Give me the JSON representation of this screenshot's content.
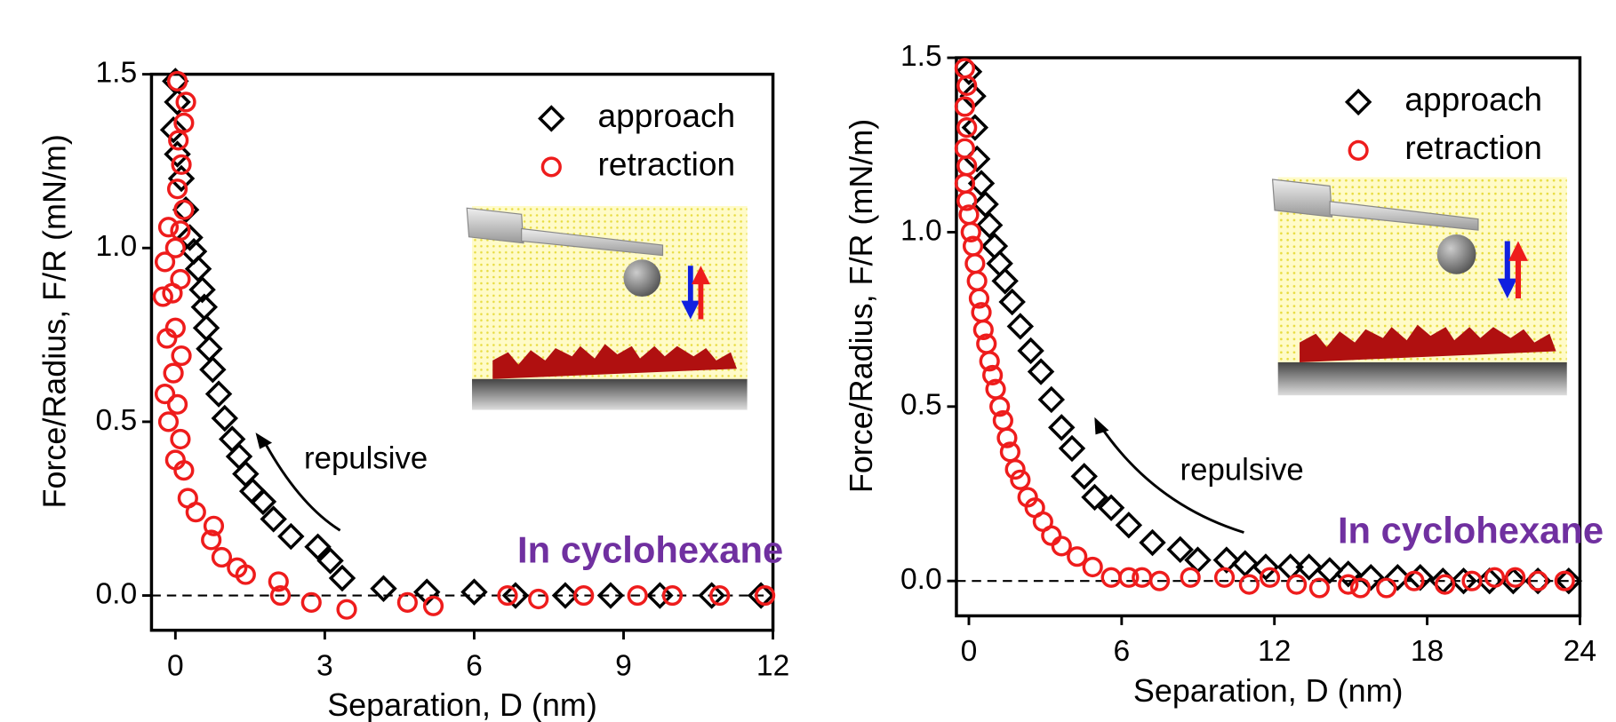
{
  "chart_data": [
    {
      "type": "scatter",
      "xlabel": "Separation, D (nm)",
      "ylabel": "Force/Radius, F/R (mN/m)",
      "xlim": [
        -0.48,
        12
      ],
      "ylim": [
        -0.1,
        1.5
      ],
      "xticks": [
        0,
        3,
        6,
        9,
        12
      ],
      "yticks": [
        {
          "value": 0,
          "label": "0.0"
        },
        0.5,
        {
          "value": 1,
          "label": "1.0"
        },
        1.5
      ],
      "hline": 0,
      "legend": "upper right",
      "annotations": [
        "repulsive",
        "In cyclohexane"
      ],
      "series": [
        {
          "name": "approach",
          "marker": "diamond",
          "color": "#000000",
          "x": [
            0.0,
            0.04,
            -0.04,
            0.04,
            0.12,
            0.21,
            0.29,
            0.37,
            0.46,
            0.54,
            0.58,
            0.62,
            0.68,
            0.75,
            0.87,
            0.99,
            1.14,
            1.28,
            1.41,
            1.55,
            1.76,
            1.97,
            2.32,
            2.86,
            3.11,
            3.35,
            4.18,
            5.05,
            6.0,
            6.83,
            7.83,
            8.74,
            9.73,
            10.77,
            11.76
          ],
          "values": [
            1.48,
            1.42,
            1.34,
            1.27,
            1.2,
            1.11,
            1.03,
            0.99,
            0.94,
            0.88,
            0.83,
            0.77,
            0.71,
            0.65,
            0.58,
            0.51,
            0.45,
            0.4,
            0.35,
            0.3,
            0.27,
            0.22,
            0.17,
            0.14,
            0.1,
            0.05,
            0.02,
            0.01,
            0.01,
            0.0,
            0.0,
            0.0,
            0.0,
            0.0,
            0.0
          ]
        },
        {
          "name": "retraction",
          "marker": "circle",
          "color": "#ee1c1c",
          "x": [
            0.04,
            0.21,
            0.17,
            0.06,
            0.12,
            0.04,
            0.17,
            0.1,
            -0.14,
            0.0,
            -0.21,
            0.1,
            -0.06,
            -0.25,
            0.0,
            -0.17,
            0.12,
            -0.04,
            -0.21,
            0.04,
            -0.14,
            0.1,
            0.0,
            0.17,
            0.25,
            0.41,
            0.77,
            0.72,
            0.93,
            1.24,
            1.41,
            2.07,
            2.11,
            2.73,
            3.44,
            4.66,
            5.18,
            6.67,
            7.29,
            8.2,
            9.28,
            9.98,
            10.93,
            11.84
          ],
          "values": [
            1.48,
            1.42,
            1.36,
            1.31,
            1.24,
            1.17,
            1.11,
            1.05,
            1.06,
            1.0,
            0.96,
            0.91,
            0.87,
            0.86,
            0.77,
            0.74,
            0.69,
            0.64,
            0.58,
            0.55,
            0.5,
            0.45,
            0.39,
            0.36,
            0.28,
            0.24,
            0.2,
            0.16,
            0.11,
            0.08,
            0.06,
            0.04,
            0.0,
            -0.02,
            -0.04,
            -0.02,
            -0.03,
            0.0,
            -0.01,
            0.0,
            0.0,
            0.0,
            0.0,
            0.0
          ]
        }
      ]
    },
    {
      "type": "scatter",
      "xlabel": "Separation, D (nm)",
      "ylabel": "Force/Radius, F/R (mN/m)",
      "xlim": [
        -0.49,
        24
      ],
      "ylim": [
        -0.1,
        1.5
      ],
      "xticks": [
        0,
        6,
        12,
        18,
        24
      ],
      "yticks": [
        {
          "value": 0,
          "label": "0.0"
        },
        0.5,
        {
          "value": 1,
          "label": "1.0"
        },
        1.5
      ],
      "hline": 0,
      "legend": "upper right",
      "annotations": [
        "repulsive",
        "In cyclohexane"
      ],
      "series": [
        {
          "name": "approach",
          "marker": "diamond",
          "color": "#000000",
          "x": [
            0.0,
            0.16,
            0.24,
            0.32,
            0.49,
            0.65,
            0.81,
            1.01,
            1.21,
            1.42,
            1.7,
            2.02,
            2.43,
            2.83,
            3.24,
            3.64,
            4.05,
            4.53,
            4.94,
            5.59,
            6.28,
            7.21,
            8.3,
            8.99,
            10.12,
            10.85,
            11.66,
            12.63,
            13.36,
            14.17,
            14.9,
            15.79,
            16.84,
            17.73,
            18.62,
            19.43,
            20.45,
            21.38,
            22.35,
            23.56
          ],
          "values": [
            1.46,
            1.39,
            1.3,
            1.21,
            1.14,
            1.08,
            1.02,
            0.96,
            0.91,
            0.86,
            0.8,
            0.73,
            0.66,
            0.6,
            0.52,
            0.44,
            0.38,
            0.3,
            0.24,
            0.21,
            0.16,
            0.11,
            0.09,
            0.06,
            0.06,
            0.05,
            0.04,
            0.04,
            0.04,
            0.03,
            0.02,
            0.01,
            0.01,
            0.01,
            0.0,
            0.0,
            0.0,
            0.0,
            0.0,
            0.0
          ]
        },
        {
          "name": "retraction",
          "marker": "circle",
          "color": "#ee1c1c",
          "x": [
            -0.16,
            -0.08,
            -0.16,
            -0.08,
            -0.16,
            -0.08,
            -0.16,
            -0.08,
            0.0,
            0.08,
            0.16,
            0.24,
            0.32,
            0.4,
            0.49,
            0.57,
            0.69,
            0.81,
            0.93,
            1.05,
            1.21,
            1.34,
            1.5,
            1.62,
            1.82,
            2.02,
            2.31,
            2.59,
            2.91,
            3.24,
            3.64,
            4.25,
            4.86,
            5.59,
            6.28,
            6.8,
            7.49,
            8.7,
            10.04,
            11.01,
            11.82,
            12.87,
            13.77,
            14.9,
            15.38,
            16.4,
            17.49,
            18.7,
            19.76,
            20.65,
            21.46,
            22.35,
            23.4
          ],
          "values": [
            1.47,
            1.42,
            1.36,
            1.3,
            1.24,
            1.19,
            1.14,
            1.09,
            1.05,
            1.0,
            0.96,
            0.91,
            0.86,
            0.81,
            0.77,
            0.72,
            0.68,
            0.63,
            0.59,
            0.55,
            0.5,
            0.46,
            0.41,
            0.37,
            0.32,
            0.29,
            0.24,
            0.21,
            0.17,
            0.13,
            0.1,
            0.07,
            0.04,
            0.01,
            0.01,
            0.01,
            0.0,
            0.01,
            0.01,
            -0.01,
            0.01,
            -0.01,
            -0.02,
            -0.01,
            -0.02,
            -0.02,
            0.0,
            -0.01,
            0.0,
            0.01,
            0.01,
            0.0,
            0.0
          ]
        }
      ]
    }
  ]
}
